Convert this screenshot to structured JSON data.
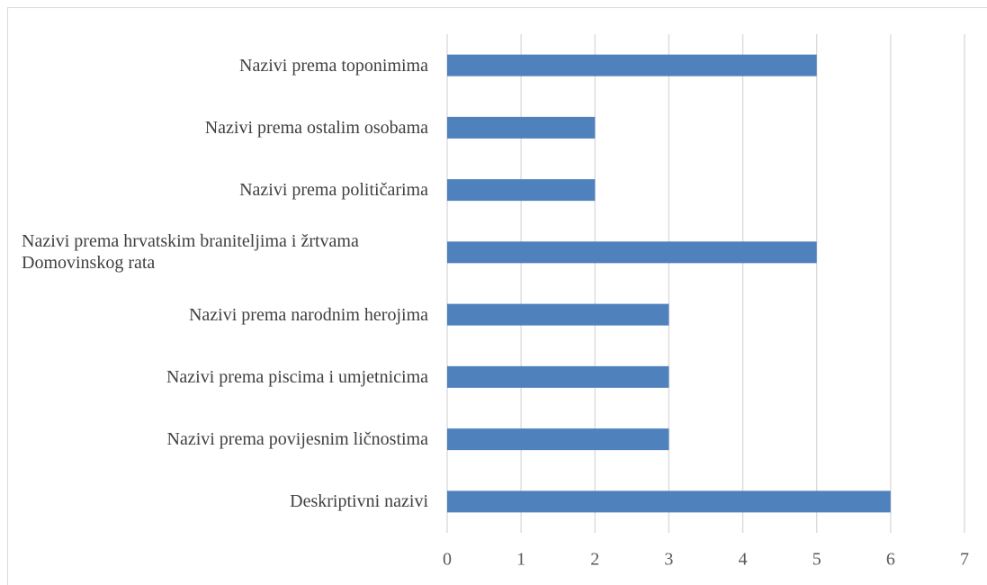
{
  "chart_data": {
    "type": "bar",
    "orientation": "horizontal",
    "categories": [
      "Nazivi prema toponimima",
      "Nazivi prema ostalim osobama",
      "Nazivi prema političarima",
      "Nazivi prema hrvatskim braniteljima i žrtvama Domovinskog rata",
      "Nazivi prema narodnim herojima",
      "Nazivi prema piscima i umjetnicima",
      "Nazivi prema povijesnim ličnostima",
      "Deskriptivni nazivi"
    ],
    "values": [
      5,
      2,
      2,
      5,
      3,
      3,
      3,
      6
    ],
    "color": "#4f81bd",
    "xlim": [
      0,
      7
    ],
    "xticks": [
      0,
      1,
      2,
      3,
      4,
      5,
      6,
      7
    ],
    "grid": true
  }
}
